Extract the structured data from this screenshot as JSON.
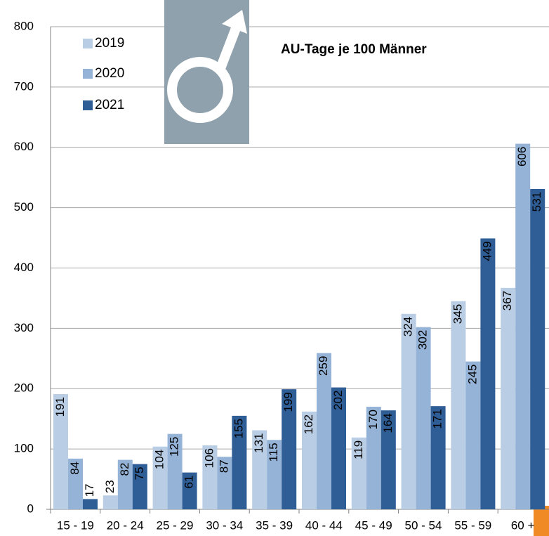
{
  "chart_data": {
    "type": "bar",
    "title": "AU-Tage je 100 Männer",
    "categories": [
      "15 - 19",
      "20 - 24",
      "25 - 29",
      "30 - 34",
      "35 - 39",
      "40 - 44",
      "45 - 49",
      "50 - 54",
      "55 - 59",
      "60 +"
    ],
    "series": [
      {
        "name": "2019",
        "color": "#b9cde5",
        "values": [
          191,
          23,
          104,
          106,
          131,
          162,
          119,
          324,
          345,
          367
        ]
      },
      {
        "name": "2020",
        "color": "#95b3d7",
        "values": [
          84,
          82,
          125,
          87,
          115,
          259,
          170,
          302,
          245,
          606
        ]
      },
      {
        "name": "2021",
        "color": "#2f5d95",
        "values": [
          17,
          75,
          61,
          155,
          199,
          202,
          164,
          171,
          449,
          531
        ]
      }
    ],
    "ylim": [
      0,
      800
    ],
    "yticks": [
      0,
      100,
      200,
      300,
      400,
      500,
      600,
      700,
      800
    ],
    "grid": true,
    "legend": "upper left"
  }
}
